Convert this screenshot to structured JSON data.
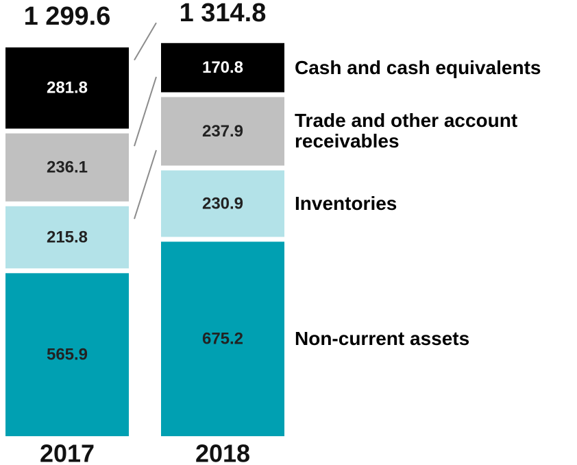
{
  "chart_data": {
    "type": "stacked_bar",
    "categories": [
      "2017",
      "2018"
    ],
    "totals": [
      1299.6,
      1314.8
    ],
    "total_labels": [
      "1 299.6",
      "1 314.8"
    ],
    "series": [
      {
        "name": "Non-current assets",
        "color": "#00a0b2",
        "values": [
          565.9,
          675.2
        ]
      },
      {
        "name": "Inventories",
        "color": "#b3e2e8",
        "values": [
          215.8,
          230.9
        ]
      },
      {
        "name": "Trade and other account receivables",
        "color": "#c0c0c0",
        "values": [
          236.1,
          237.9
        ]
      },
      {
        "name": "Cash and cash equivalents",
        "color": "#000000",
        "values": [
          281.8,
          170.8
        ]
      }
    ]
  }
}
